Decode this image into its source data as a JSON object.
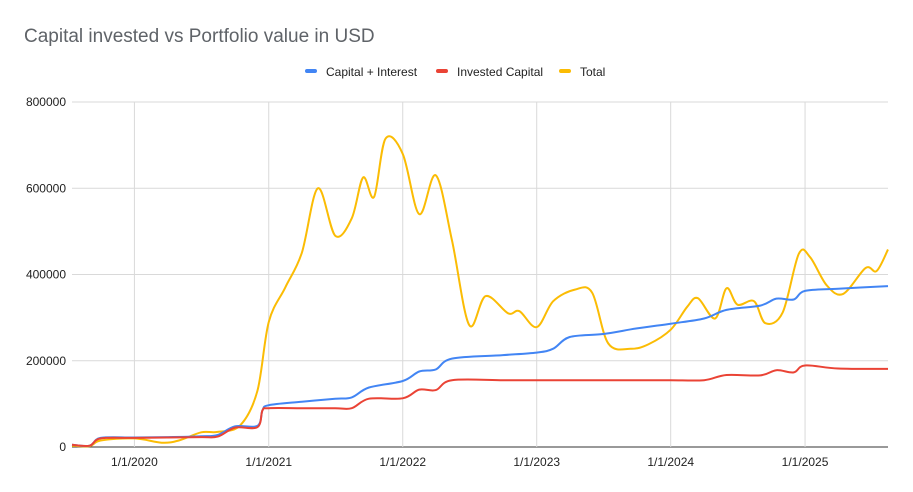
{
  "chart_data": {
    "type": "line",
    "title": "Capital invested vs Portfolio value in USD",
    "legend_position": "top",
    "grid": true,
    "xlim": [
      "2019-07-15",
      "2025-08-15"
    ],
    "ylim": [
      0,
      800000
    ],
    "y_ticks": [
      0,
      200000,
      400000,
      600000,
      800000
    ],
    "y_tick_labels": [
      "0",
      "200000",
      "400000",
      "600000",
      "800000"
    ],
    "x_ticks": [
      "2020-01-01",
      "2021-01-01",
      "2022-01-01",
      "2023-01-01",
      "2024-01-01",
      "2025-01-01"
    ],
    "x_tick_labels": [
      "1/1/2020",
      "1/1/2021",
      "1/1/2022",
      "1/1/2023",
      "1/1/2024",
      "1/1/2025"
    ],
    "series": [
      {
        "name": "Capital + Interest",
        "color": "#4285f4",
        "points": [
          [
            "2019-07-15",
            5000
          ],
          [
            "2019-09-01",
            3000
          ],
          [
            "2019-10-01",
            21000
          ],
          [
            "2020-01-01",
            22000
          ],
          [
            "2020-04-01",
            23000
          ],
          [
            "2020-07-01",
            25000
          ],
          [
            "2020-08-15",
            28000
          ],
          [
            "2020-10-01",
            48000
          ],
          [
            "2020-12-01",
            49000
          ],
          [
            "2020-12-15",
            85000
          ],
          [
            "2021-01-01",
            97000
          ],
          [
            "2021-04-01",
            105000
          ],
          [
            "2021-07-01",
            112000
          ],
          [
            "2021-08-15",
            115000
          ],
          [
            "2021-10-01",
            138000
          ],
          [
            "2022-01-01",
            153000
          ],
          [
            "2022-02-15",
            175000
          ],
          [
            "2022-04-01",
            180000
          ],
          [
            "2022-05-15",
            205000
          ],
          [
            "2022-10-01",
            213000
          ],
          [
            "2023-01-01",
            219000
          ],
          [
            "2023-02-15",
            228000
          ],
          [
            "2023-04-01",
            255000
          ],
          [
            "2023-07-01",
            262000
          ],
          [
            "2023-10-01",
            275000
          ],
          [
            "2024-01-01",
            286000
          ],
          [
            "2024-04-01",
            298000
          ],
          [
            "2024-06-01",
            318000
          ],
          [
            "2024-09-01",
            328000
          ],
          [
            "2024-10-15",
            344000
          ],
          [
            "2024-12-01",
            342000
          ],
          [
            "2025-01-01",
            362000
          ],
          [
            "2025-04-01",
            367000
          ],
          [
            "2025-08-15",
            373000
          ]
        ]
      },
      {
        "name": "Invested Capital",
        "color": "#ea4335",
        "points": [
          [
            "2019-07-15",
            5000
          ],
          [
            "2019-09-01",
            3000
          ],
          [
            "2019-10-01",
            20000
          ],
          [
            "2020-01-01",
            21000
          ],
          [
            "2020-04-01",
            22000
          ],
          [
            "2020-07-01",
            23000
          ],
          [
            "2020-08-15",
            24000
          ],
          [
            "2020-10-01",
            45000
          ],
          [
            "2020-12-01",
            46000
          ],
          [
            "2020-12-15",
            85000
          ],
          [
            "2021-01-01",
            90000
          ],
          [
            "2021-04-01",
            90000
          ],
          [
            "2021-07-01",
            90000
          ],
          [
            "2021-08-15",
            90000
          ],
          [
            "2021-10-01",
            112000
          ],
          [
            "2022-01-01",
            113000
          ],
          [
            "2022-02-15",
            133000
          ],
          [
            "2022-04-01",
            132000
          ],
          [
            "2022-05-15",
            155000
          ],
          [
            "2022-10-01",
            155000
          ],
          [
            "2023-01-01",
            155000
          ],
          [
            "2023-04-01",
            155000
          ],
          [
            "2023-07-01",
            155000
          ],
          [
            "2023-10-01",
            155000
          ],
          [
            "2024-01-01",
            155000
          ],
          [
            "2024-04-01",
            155000
          ],
          [
            "2024-06-01",
            167000
          ],
          [
            "2024-09-01",
            166000
          ],
          [
            "2024-10-15",
            178000
          ],
          [
            "2024-12-01",
            173000
          ],
          [
            "2025-01-01",
            189000
          ],
          [
            "2025-04-01",
            182000
          ],
          [
            "2025-08-15",
            181000
          ]
        ]
      },
      {
        "name": "Total",
        "color": "#fbbc04",
        "points": [
          [
            "2019-07-15",
            3000
          ],
          [
            "2019-09-01",
            2000
          ],
          [
            "2019-10-01",
            15000
          ],
          [
            "2020-01-01",
            20000
          ],
          [
            "2020-03-15",
            10000
          ],
          [
            "2020-05-01",
            15000
          ],
          [
            "2020-07-01",
            34000
          ],
          [
            "2020-08-15",
            35000
          ],
          [
            "2020-10-15",
            50000
          ],
          [
            "2020-12-01",
            130000
          ],
          [
            "2021-01-01",
            290000
          ],
          [
            "2021-02-15",
            370000
          ],
          [
            "2021-04-01",
            450000
          ],
          [
            "2021-05-15",
            600000
          ],
          [
            "2021-07-01",
            490000
          ],
          [
            "2021-08-15",
            530000
          ],
          [
            "2021-09-15",
            625000
          ],
          [
            "2021-10-15",
            580000
          ],
          [
            "2021-11-15",
            715000
          ],
          [
            "2022-01-01",
            680000
          ],
          [
            "2022-02-15",
            540000
          ],
          [
            "2022-04-01",
            630000
          ],
          [
            "2022-05-15",
            480000
          ],
          [
            "2022-07-01",
            283000
          ],
          [
            "2022-08-15",
            350000
          ],
          [
            "2022-10-15",
            310000
          ],
          [
            "2022-11-15",
            315000
          ],
          [
            "2023-01-01",
            278000
          ],
          [
            "2023-02-15",
            338000
          ],
          [
            "2023-04-15",
            365000
          ],
          [
            "2023-06-01",
            358000
          ],
          [
            "2023-07-15",
            240000
          ],
          [
            "2023-09-15",
            228000
          ],
          [
            "2023-11-01",
            238000
          ],
          [
            "2024-01-01",
            272000
          ],
          [
            "2024-02-15",
            325000
          ],
          [
            "2024-03-15",
            345000
          ],
          [
            "2024-05-01",
            298000
          ],
          [
            "2024-06-01",
            368000
          ],
          [
            "2024-07-01",
            330000
          ],
          [
            "2024-08-15",
            338000
          ],
          [
            "2024-09-15",
            287000
          ],
          [
            "2024-11-01",
            312000
          ],
          [
            "2024-12-15",
            448000
          ],
          [
            "2025-01-15",
            440000
          ],
          [
            "2025-03-01",
            375000
          ],
          [
            "2025-04-15",
            355000
          ],
          [
            "2025-06-15",
            415000
          ],
          [
            "2025-07-15",
            408000
          ],
          [
            "2025-08-15",
            458000
          ]
        ]
      }
    ]
  }
}
